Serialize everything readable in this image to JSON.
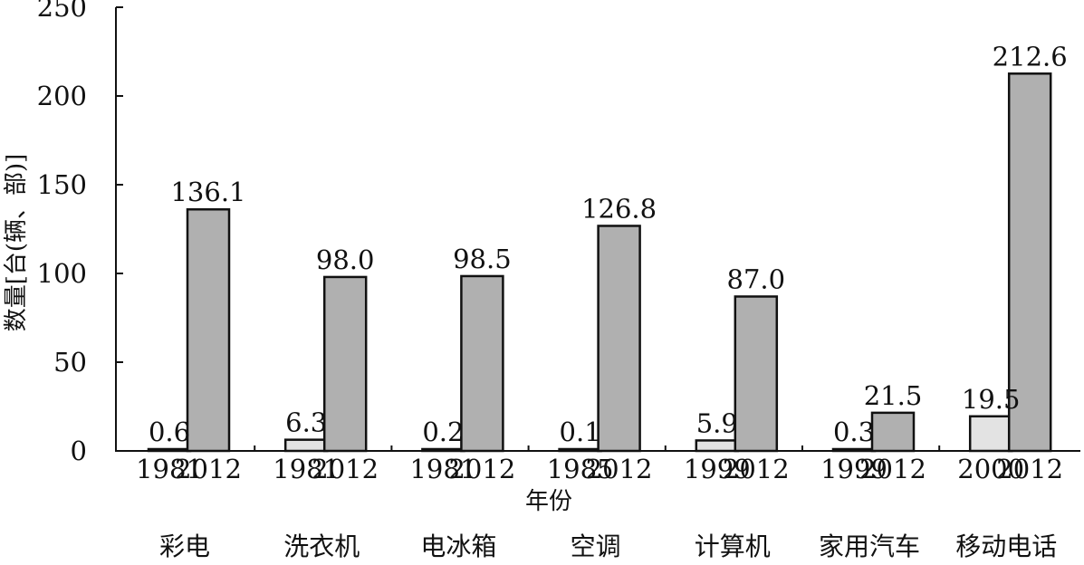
{
  "chart_data": {
    "type": "bar",
    "title": "",
    "xlabel": "年份",
    "ylabel": "数量[台(辆、部)]",
    "ylim": [
      0,
      250
    ],
    "yticks": [
      0,
      50,
      100,
      150,
      200,
      250
    ],
    "grid": false,
    "legend": "none",
    "colors": {
      "early": "#e3e3e3",
      "late": "#b0b0b0",
      "stroke": "#111111"
    },
    "groups": [
      {
        "category": "彩电",
        "bars": [
          {
            "year": "1981",
            "value": 0.6,
            "label": "0.6"
          },
          {
            "year": "2012",
            "value": 136.1,
            "label": "136.1"
          }
        ]
      },
      {
        "category": "洗衣机",
        "bars": [
          {
            "year": "1981",
            "value": 6.3,
            "label": "6.3"
          },
          {
            "year": "2012",
            "value": 98.0,
            "label": "98.0"
          }
        ]
      },
      {
        "category": "电冰箱",
        "bars": [
          {
            "year": "1981",
            "value": 0.2,
            "label": "0.2"
          },
          {
            "year": "2012",
            "value": 98.5,
            "label": "98.5"
          }
        ]
      },
      {
        "category": "空调",
        "bars": [
          {
            "year": "1985",
            "value": 0.1,
            "label": "0.1"
          },
          {
            "year": "2012",
            "value": 126.8,
            "label": "126.8"
          }
        ]
      },
      {
        "category": "计算机",
        "bars": [
          {
            "year": "1999",
            "value": 5.9,
            "label": "5.9"
          },
          {
            "year": "2012",
            "value": 87.0,
            "label": "87.0"
          }
        ]
      },
      {
        "category": "家用汽车",
        "bars": [
          {
            "year": "1999",
            "value": 0.3,
            "label": "0.3"
          },
          {
            "year": "2012",
            "value": 21.5,
            "label": "21.5"
          }
        ]
      },
      {
        "category": "移动电话",
        "bars": [
          {
            "year": "2000",
            "value": 19.5,
            "label": "19.5"
          },
          {
            "year": "2012",
            "value": 212.6,
            "label": "212.6"
          }
        ]
      }
    ]
  }
}
